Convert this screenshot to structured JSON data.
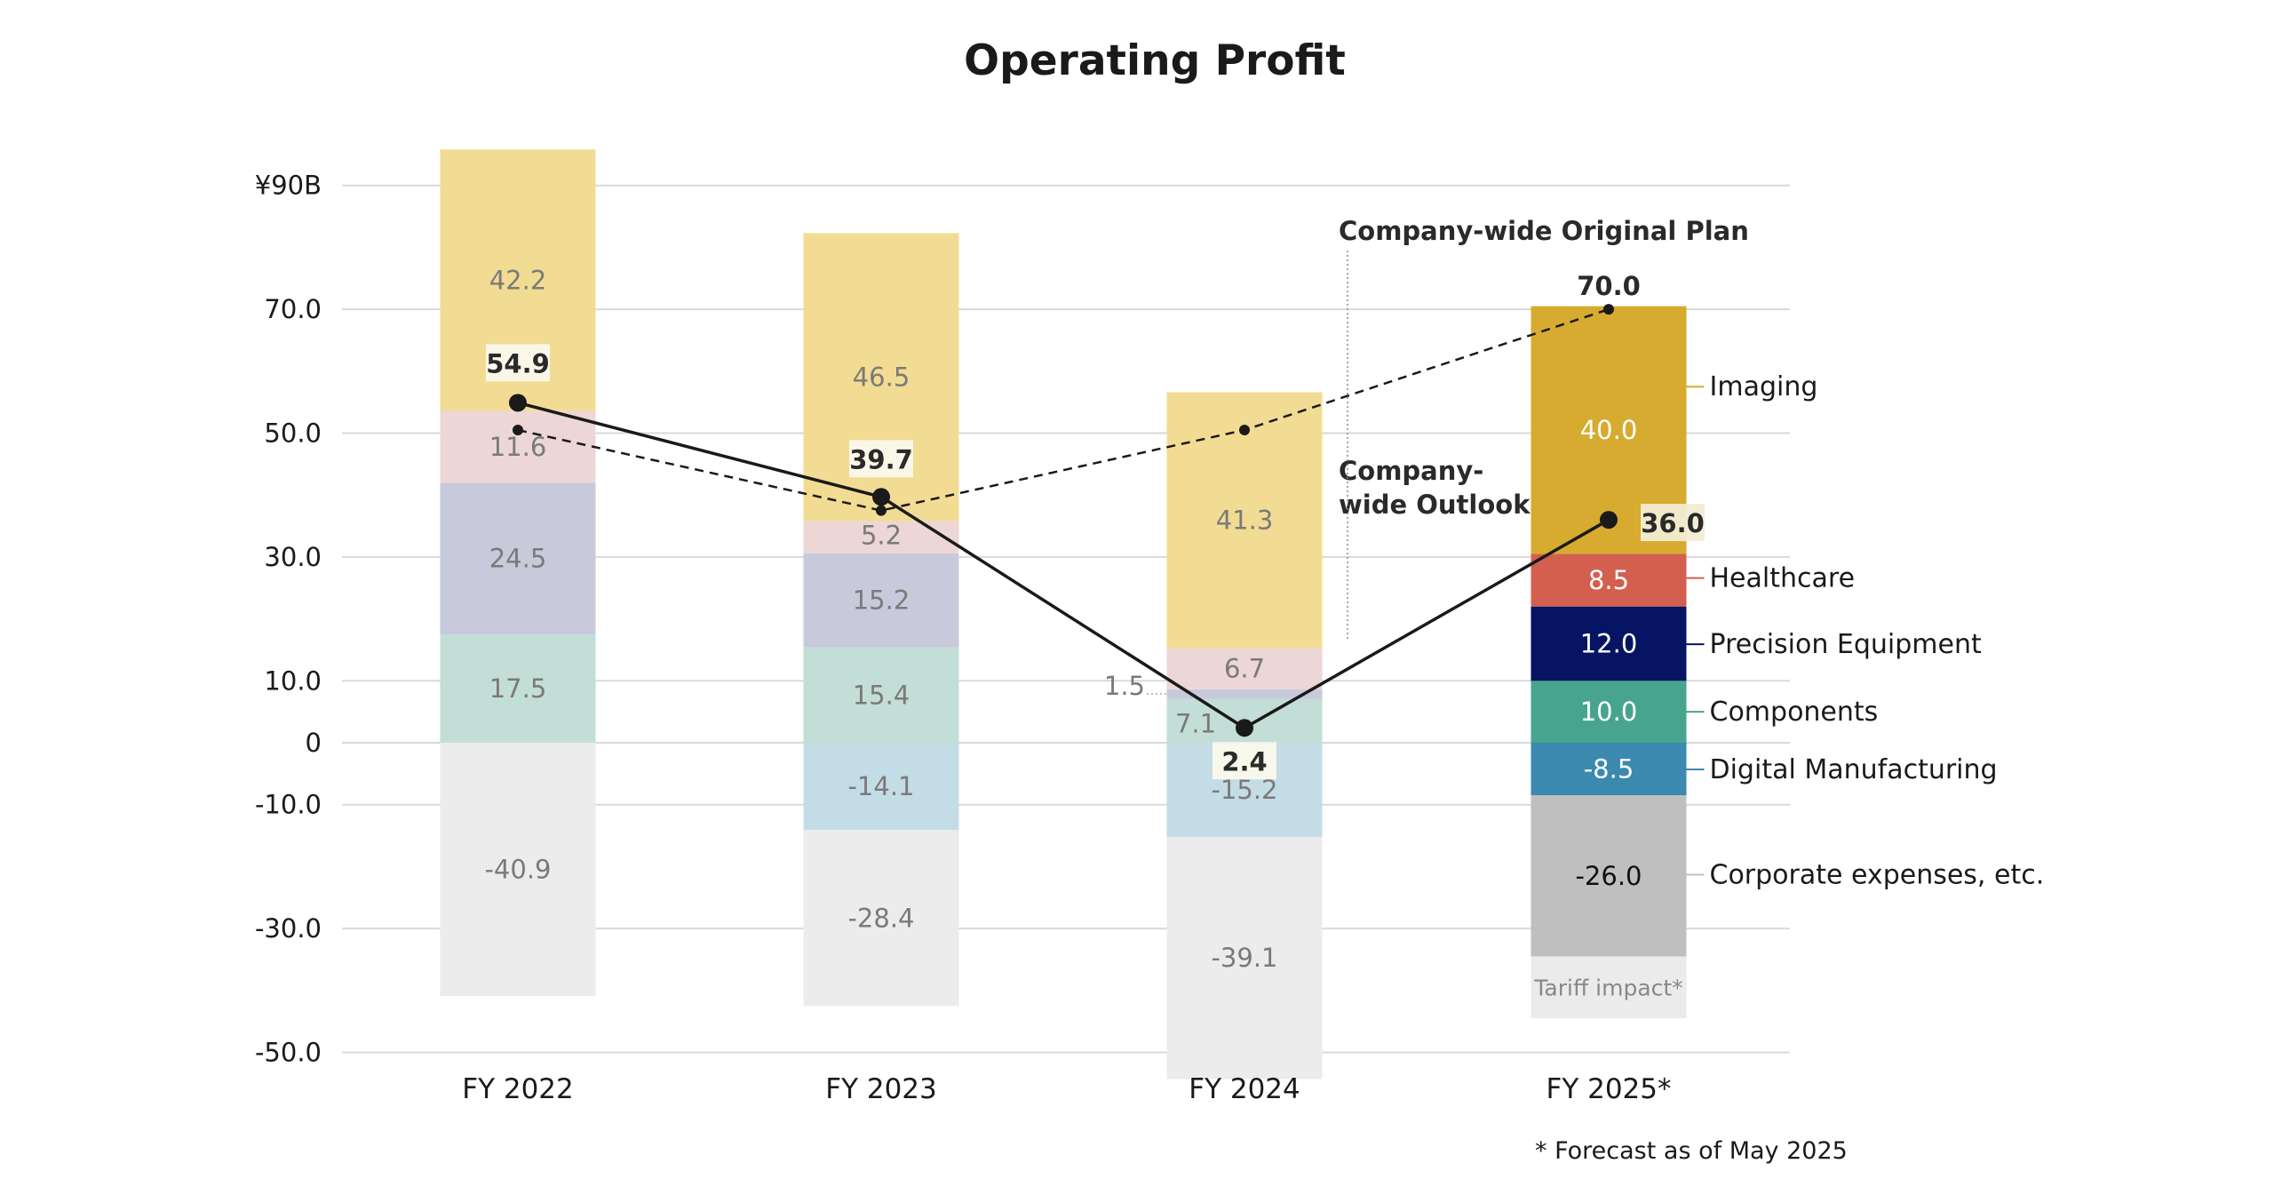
{
  "chart_data": {
    "type": "bar",
    "stacked": true,
    "title": "Operating Profit",
    "categories": [
      "FY 2022",
      "FY 2023",
      "FY 2024",
      "FY 2025*"
    ],
    "y_ticks": [
      {
        "value": 90,
        "label": "¥90B"
      },
      {
        "value": 70,
        "label": "70.0"
      },
      {
        "value": 50,
        "label": "50.0"
      },
      {
        "value": 30,
        "label": "30.0"
      },
      {
        "value": 10,
        "label": "10.0"
      },
      {
        "value": 0,
        "label": "0"
      },
      {
        "value": -10,
        "label": "-10.0"
      },
      {
        "value": -30,
        "label": "-30.0"
      },
      {
        "value": -50,
        "label": "-50.0"
      }
    ],
    "ylim": [
      -50,
      96
    ],
    "series": [
      {
        "name": "Imaging",
        "values": [
          42.2,
          46.5,
          41.3,
          40.0
        ],
        "labels": [
          "42.2",
          "46.5",
          "41.3",
          "40.0"
        ],
        "color": "#f2dc93",
        "forecast_color": "#d6ab2f"
      },
      {
        "name": "Healthcare",
        "values": [
          11.6,
          5.2,
          6.7,
          8.5
        ],
        "labels": [
          "11.6",
          "5.2",
          "6.7",
          "8.5"
        ],
        "color": "#ecd6d6",
        "forecast_color": "#d35f4f"
      },
      {
        "name": "Precision Equipment",
        "values": [
          24.5,
          15.2,
          1.5,
          12.0
        ],
        "labels": [
          "24.5",
          "15.2",
          "1.5",
          "12.0"
        ],
        "color": "#c8cadc",
        "forecast_color": "#071463"
      },
      {
        "name": "Components",
        "values": [
          17.5,
          15.4,
          7.1,
          10.0
        ],
        "labels": [
          "17.5",
          "15.4",
          "7.1",
          "10.0"
        ],
        "color": "#c3ded6",
        "forecast_color": "#47a58f"
      },
      {
        "name": "Digital Manufacturing",
        "values": [
          null,
          -14.1,
          -15.2,
          -8.5
        ],
        "labels": [
          "",
          "-14.1",
          "-15.2",
          "-8.5"
        ],
        "color": "#c4dce5",
        "forecast_color": "#3b89ae"
      },
      {
        "name": "Corporate expenses, etc.",
        "values": [
          -40.9,
          -28.4,
          -39.1,
          -26.0
        ],
        "labels": [
          "-40.9",
          "-28.4",
          "-39.1",
          "-26.0"
        ],
        "color": "#ececec",
        "forecast_color": "#bfbfbf"
      }
    ],
    "tariff_impact": {
      "label": "Tariff impact*",
      "value": -10.0,
      "color": "#ebebeb"
    },
    "outlook_line": {
      "name": "Company-wide Outlook",
      "values": [
        54.9,
        39.7,
        2.4,
        36.0
      ],
      "labels": [
        "54.9",
        "39.7",
        "2.4",
        "36.0"
      ]
    },
    "plan_line": {
      "name": "Company-wide Original Plan",
      "values": [
        50.5,
        37.5,
        50.5,
        70.0
      ],
      "labels": [
        "",
        "",
        "",
        "70.0"
      ]
    },
    "annotations": {
      "plan": "Company-wide Original Plan",
      "outlook_line1": "Company-",
      "outlook_line2": "wide Outlook"
    },
    "footnote": "* Forecast as of May 2025",
    "colors": {
      "grid": "#d9d9d9",
      "text_light": "#7a7a7a",
      "line": "#1a1a1a"
    }
  }
}
